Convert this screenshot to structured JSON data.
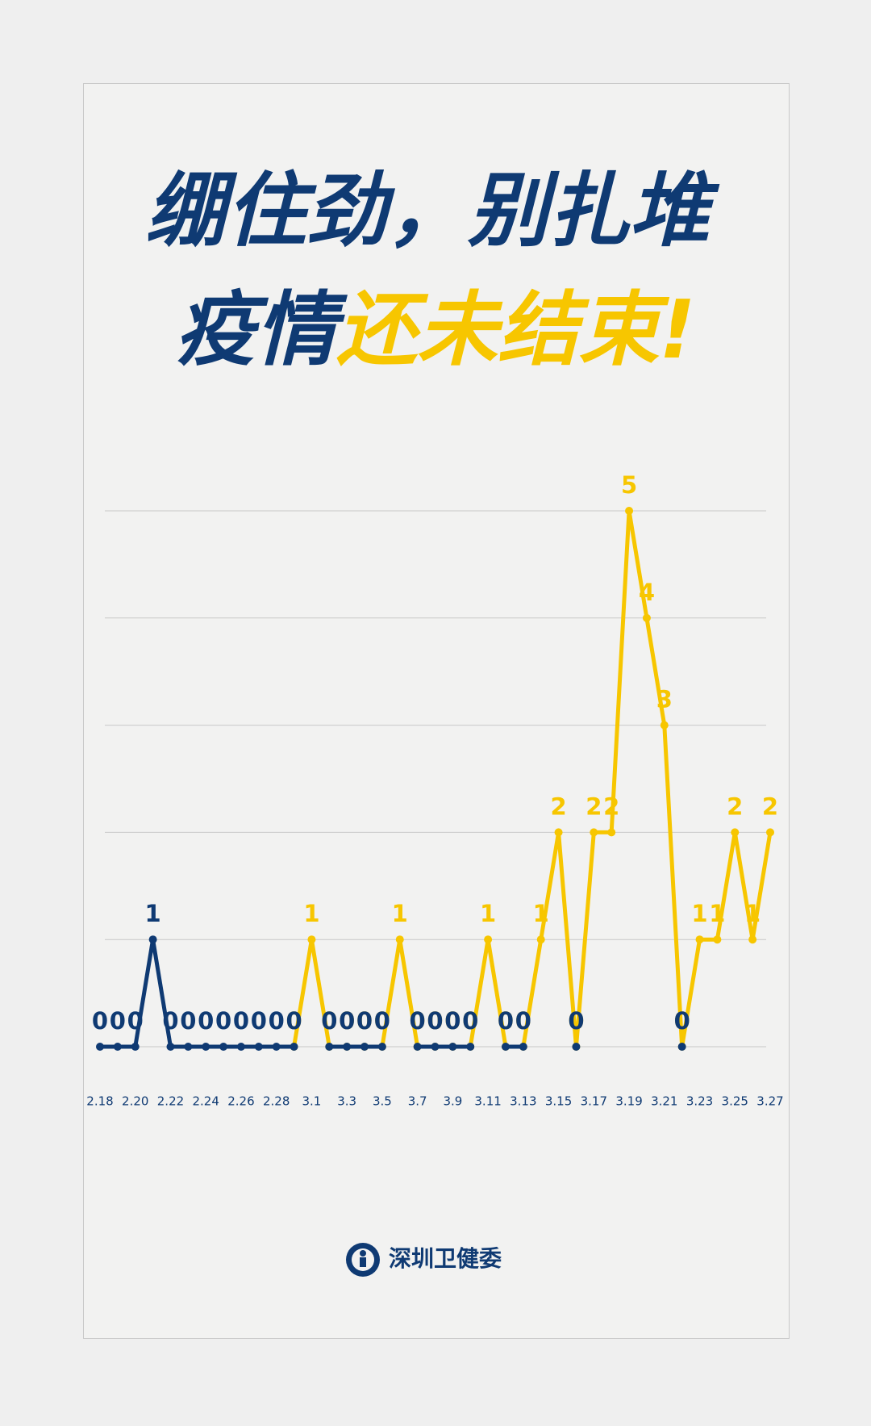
{
  "chart_data": {
    "type": "line",
    "title": "绷住劲，别扎堆",
    "subtitle": [
      "疫情",
      "还未结束!"
    ],
    "source": "深圳卫健委",
    "categories": [
      "2.18",
      null,
      "2.20",
      null,
      "2.22",
      null,
      "2.24",
      null,
      "2.26",
      null,
      "2.28",
      null,
      "3.1",
      null,
      "3.3",
      null,
      "3.5",
      null,
      "3.7",
      null,
      "3.9",
      null,
      "3.11",
      null,
      "3.13",
      null,
      "3.15",
      null,
      "3.17",
      null,
      "3.19",
      null,
      "3.21",
      null,
      "3.23",
      null,
      "3.25",
      null,
      "3.27"
    ],
    "series": [
      {
        "color": "#f7c600",
        "values": [
          null,
          null,
          null,
          null,
          null,
          null,
          null,
          null,
          null,
          null,
          null,
          0,
          1,
          0,
          0,
          0,
          0,
          1,
          0,
          0,
          0,
          0,
          1,
          0,
          0,
          1,
          2,
          0,
          2,
          2,
          5,
          4,
          3,
          0,
          1,
          1,
          2,
          1,
          2
        ]
      },
      {
        "color": "#0f3a73",
        "values": [
          0,
          0,
          0,
          1,
          0,
          0,
          0,
          0,
          0,
          0,
          0,
          0,
          null,
          0,
          0,
          0,
          0,
          null,
          0,
          0,
          0,
          0,
          null,
          0,
          0,
          null,
          null,
          0,
          null,
          null,
          null,
          null,
          null,
          0,
          null,
          null,
          null,
          null,
          null
        ]
      }
    ],
    "ylim": [
      0,
      5
    ],
    "yticks": [
      0,
      1,
      2,
      3,
      4,
      5
    ],
    "tick_labels": false,
    "grid": true,
    "data_labels": true
  }
}
